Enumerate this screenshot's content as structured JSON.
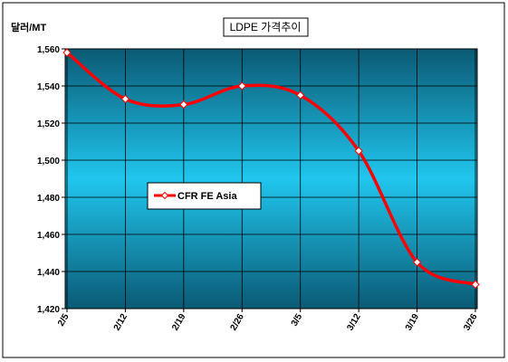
{
  "chart_data": {
    "type": "line",
    "title": "LDPE 가격추이",
    "ylabel": "달러/MT",
    "xlabel": "",
    "categories": [
      "2/5",
      "2/12",
      "2/19",
      "2/26",
      "3/5",
      "3/12",
      "3/19",
      "3/26"
    ],
    "series": [
      {
        "name": "CFR FE Asia",
        "values": [
          1558,
          1533,
          1530,
          1540,
          1535,
          1505,
          1445,
          1433
        ]
      }
    ],
    "ylim": [
      1420,
      1560
    ],
    "yticks": [
      1420,
      1440,
      1460,
      1480,
      1500,
      1520,
      1540,
      1560
    ],
    "ytick_labels": [
      "1,420",
      "1,440",
      "1,460",
      "1,480",
      "1,500",
      "1,520",
      "1,540",
      "1,560"
    ],
    "grid": true,
    "smooth": true,
    "legend_position": "center-left",
    "colors": {
      "line": "#ff0000",
      "plot_bg_top": "#0b5a74",
      "plot_bg_mid": "#20c6ee",
      "plot_bg_bottom": "#0b5a74",
      "marker_fill": "#ffffff"
    }
  }
}
